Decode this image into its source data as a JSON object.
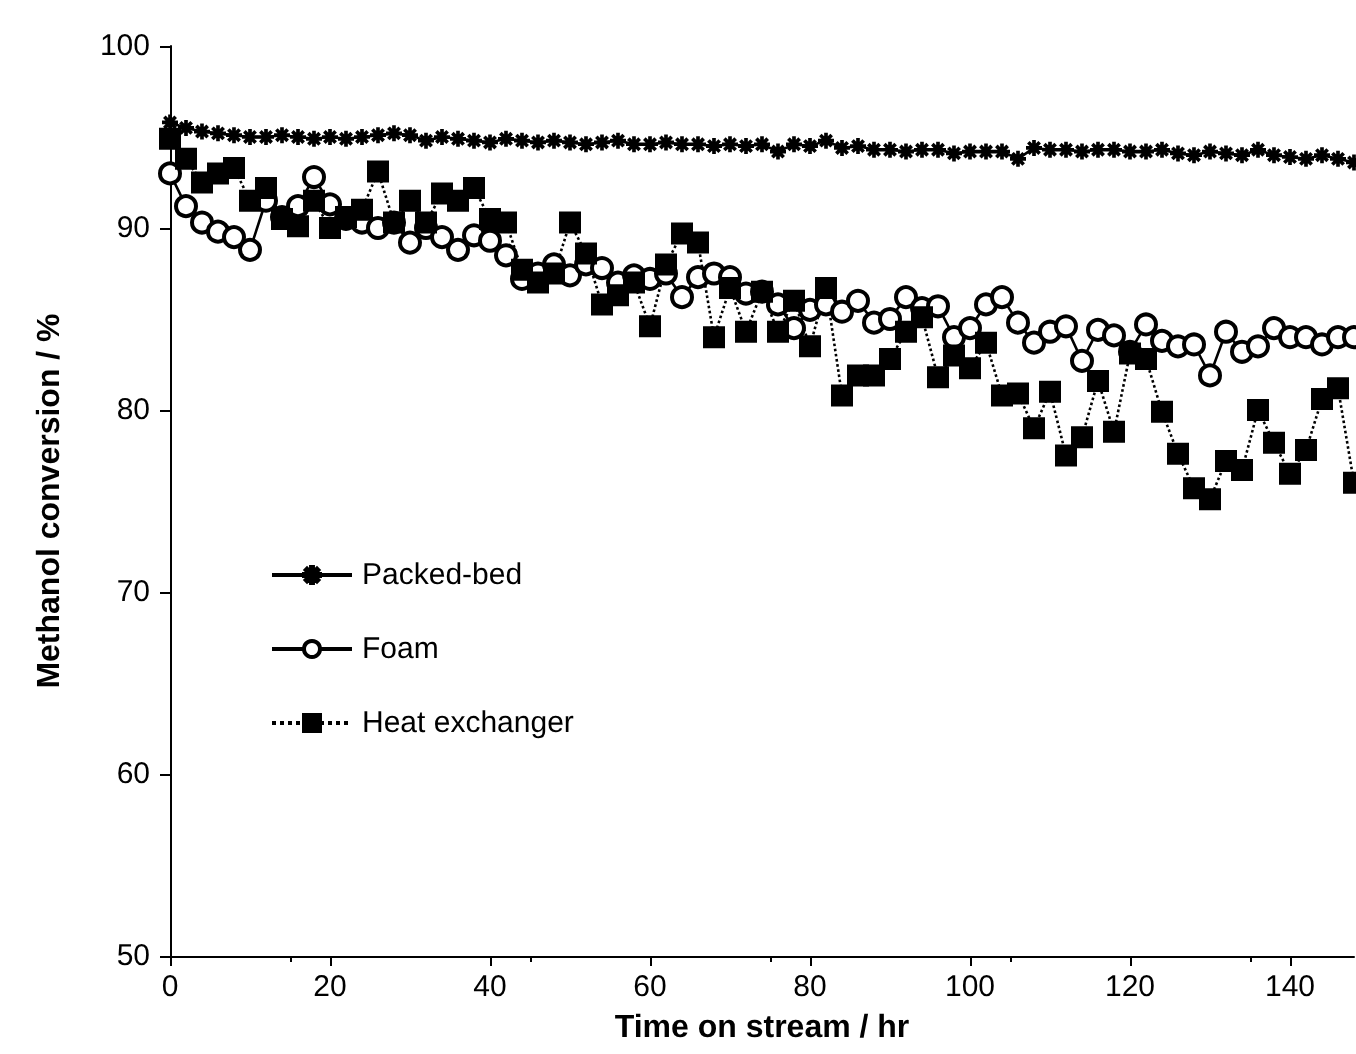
{
  "chart_data": {
    "type": "line",
    "xlabel": "Time on stream / hr",
    "ylabel": "Methanol conversion / %",
    "xlim": [
      0,
      148
    ],
    "xticks": [
      0,
      20,
      40,
      60,
      80,
      100,
      120,
      140
    ],
    "ylim": [
      50,
      100
    ],
    "yticks": [
      50,
      60,
      70,
      80,
      90,
      100
    ],
    "grid": false,
    "legend": "left",
    "x": [
      0,
      2,
      4,
      6,
      8,
      10,
      12,
      14,
      16,
      18,
      20,
      22,
      24,
      26,
      28,
      30,
      32,
      34,
      36,
      38,
      40,
      42,
      44,
      46,
      48,
      50,
      52,
      54,
      56,
      58,
      60,
      62,
      64,
      66,
      68,
      70,
      72,
      74,
      76,
      78,
      80,
      82,
      84,
      86,
      88,
      90,
      92,
      94,
      96,
      98,
      100,
      102,
      104,
      106,
      108,
      110,
      112,
      114,
      116,
      118,
      120,
      122,
      124,
      126,
      128,
      130,
      132,
      134,
      136,
      138,
      140,
      142,
      144,
      146,
      148
    ],
    "series": [
      {
        "name": "Packed-bed",
        "color": "#000000",
        "marker": "cross",
        "line_style": "solid",
        "values": [
          95.8,
          95.5,
          95.3,
          95.2,
          95.1,
          95.0,
          95.0,
          95.1,
          95.0,
          94.9,
          95.0,
          94.9,
          95.0,
          95.1,
          95.2,
          95.1,
          94.8,
          95.0,
          94.9,
          94.8,
          94.7,
          94.9,
          94.8,
          94.7,
          94.8,
          94.7,
          94.6,
          94.7,
          94.8,
          94.6,
          94.6,
          94.7,
          94.6,
          94.6,
          94.5,
          94.6,
          94.5,
          94.6,
          94.2,
          94.6,
          94.5,
          94.8,
          94.4,
          94.5,
          94.3,
          94.3,
          94.2,
          94.3,
          94.3,
          94.1,
          94.2,
          94.2,
          94.2,
          93.8,
          94.4,
          94.3,
          94.3,
          94.2,
          94.3,
          94.3,
          94.2,
          94.2,
          94.3,
          94.1,
          94.0,
          94.2,
          94.1,
          94.0,
          94.3,
          94.0,
          93.9,
          93.8,
          94.0,
          93.8,
          93.6
        ]
      },
      {
        "name": "Foam",
        "color": "#000000",
        "marker": "circle",
        "line_style": "solid",
        "values": [
          93.0,
          91.2,
          90.3,
          89.8,
          89.5,
          88.8,
          91.5,
          90.6,
          91.2,
          92.8,
          91.3,
          90.5,
          90.3,
          90.0,
          90.3,
          89.2,
          90.0,
          89.5,
          88.8,
          89.6,
          89.3,
          88.5,
          87.2,
          87.5,
          88.0,
          87.4,
          88.0,
          87.8,
          87.0,
          87.4,
          87.2,
          87.5,
          86.2,
          87.3,
          87.5,
          87.3,
          86.4,
          86.5,
          85.8,
          84.5,
          85.5,
          85.8,
          85.4,
          86.0,
          84.8,
          85.0,
          86.2,
          85.6,
          85.7,
          84.0,
          84.5,
          85.8,
          86.2,
          84.8,
          83.7,
          84.3,
          84.6,
          82.7,
          84.4,
          84.1,
          83.2,
          84.7,
          83.8,
          83.5,
          83.6,
          81.9,
          84.3,
          83.2,
          83.5,
          84.5,
          84.0,
          84.0,
          83.6,
          84.0,
          84.0
        ]
      },
      {
        "name": "Heat exchanger",
        "color": "#000000",
        "marker": "square",
        "line_style": "dotted",
        "values": [
          94.9,
          93.8,
          92.5,
          93.0,
          93.3,
          91.5,
          92.2,
          90.5,
          90.1,
          91.5,
          90.0,
          90.6,
          91.0,
          93.1,
          90.3,
          91.5,
          90.3,
          91.9,
          91.5,
          92.2,
          90.5,
          90.3,
          87.7,
          87.0,
          87.5,
          90.3,
          88.6,
          85.8,
          86.3,
          87.0,
          84.6,
          88.0,
          89.7,
          89.2,
          84.0,
          86.7,
          84.3,
          86.5,
          84.3,
          86.0,
          83.5,
          86.7,
          80.8,
          81.9,
          81.9,
          82.8,
          84.3,
          85.1,
          81.8,
          83.0,
          82.3,
          83.7,
          80.8,
          80.9,
          79.0,
          81.0,
          77.5,
          78.5,
          81.6,
          78.8,
          83.1,
          82.8,
          79.9,
          77.6,
          75.7,
          75.1,
          77.2,
          76.7,
          80.0,
          78.2,
          76.5,
          77.8,
          80.6,
          81.2,
          76.0
        ]
      }
    ]
  }
}
